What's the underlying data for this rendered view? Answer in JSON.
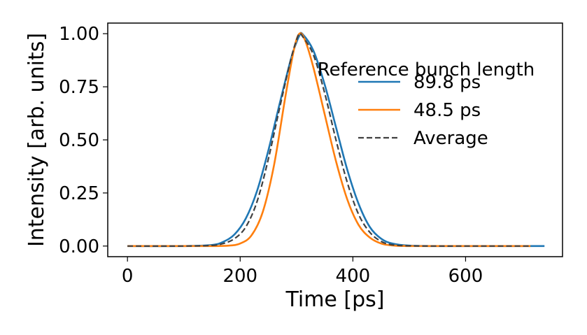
{
  "chart_data": {
    "type": "line",
    "title": "",
    "xlabel": "Time [ps]",
    "ylabel": "Intensity [arb. units]",
    "xlim": [
      -35,
      772
    ],
    "ylim": [
      -0.05,
      1.05
    ],
    "xticks": [
      0,
      200,
      400,
      600
    ],
    "xtick_labels": [
      "0",
      "200",
      "400",
      "600"
    ],
    "yticks": [
      0.0,
      0.25,
      0.5,
      0.75,
      1.0
    ],
    "ytick_labels": [
      "0.00",
      "0.25",
      "0.50",
      "0.75",
      "1.00"
    ],
    "grid": false,
    "legend": {
      "title": "Reference bunch length",
      "placement": "top-right"
    },
    "series": [
      {
        "name": "89.8 ps",
        "color": "#1f77b4",
        "style": "solid",
        "x": [
          0,
          100,
          150,
          170,
          190,
          210,
          230,
          250,
          270,
          290,
          300,
          305,
          310,
          330,
          350,
          370,
          390,
          410,
          430,
          450,
          470,
          500,
          550,
          600,
          650,
          700,
          740
        ],
        "y": [
          0.0,
          0.0,
          0.005,
          0.02,
          0.055,
          0.13,
          0.26,
          0.45,
          0.67,
          0.88,
          0.96,
          0.99,
          1.0,
          0.92,
          0.76,
          0.56,
          0.36,
          0.2,
          0.09,
          0.035,
          0.012,
          0.002,
          0.0,
          0.0,
          0.0,
          0.0,
          0.0
        ]
      },
      {
        "name": "48.5 ps",
        "color": "#ff7f0e",
        "style": "solid",
        "x": [
          0,
          100,
          150,
          180,
          200,
          220,
          240,
          260,
          280,
          295,
          305,
          315,
          330,
          350,
          370,
          390,
          410,
          430,
          450,
          470,
          500,
          550,
          600,
          650,
          715
        ],
        "y": [
          0.0,
          0.0,
          0.0,
          0.002,
          0.012,
          0.05,
          0.16,
          0.38,
          0.7,
          0.92,
          1.0,
          0.97,
          0.84,
          0.62,
          0.4,
          0.22,
          0.1,
          0.04,
          0.012,
          0.003,
          0.0,
          0.0,
          0.0,
          0.0,
          0.0
        ]
      },
      {
        "name": "Average",
        "color": "#404040",
        "style": "dashed",
        "x": [
          0,
          100,
          150,
          170,
          190,
          210,
          230,
          250,
          270,
          290,
          300,
          305,
          310,
          330,
          350,
          370,
          390,
          410,
          430,
          450,
          470,
          500,
          550,
          600,
          650,
          715
        ],
        "y": [
          0.0,
          0.0,
          0.003,
          0.012,
          0.035,
          0.09,
          0.21,
          0.41,
          0.65,
          0.88,
          0.97,
          1.0,
          0.99,
          0.9,
          0.72,
          0.5,
          0.3,
          0.15,
          0.065,
          0.022,
          0.006,
          0.001,
          0.0,
          0.0,
          0.0,
          0.0
        ]
      }
    ]
  }
}
